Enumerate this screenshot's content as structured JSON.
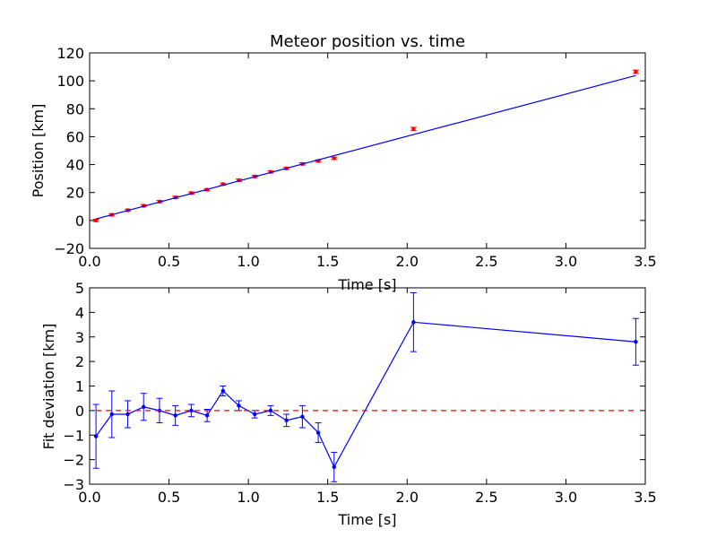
{
  "chart_data": [
    {
      "type": "scatter",
      "title": "Meteor position vs. time",
      "xlabel": "Time [s]",
      "ylabel": "Position [km]",
      "xlim": [
        0.0,
        3.5
      ],
      "ylim": [
        -20,
        120
      ],
      "xticks": [
        "0.0",
        "0.5",
        "1.0",
        "1.5",
        "2.0",
        "2.5",
        "3.0",
        "3.5"
      ],
      "yticks": [
        "−20",
        "0",
        "20",
        "40",
        "60",
        "80",
        "100",
        "120"
      ],
      "grid": false,
      "series": [
        {
          "kind": "points_with_errorbars",
          "color": "#ff0000",
          "x": [
            0.04,
            0.14,
            0.24,
            0.34,
            0.44,
            0.54,
            0.64,
            0.74,
            0.84,
            0.94,
            1.04,
            1.14,
            1.24,
            1.34,
            1.44,
            1.54,
            2.04,
            3.44
          ],
          "y": [
            0.0,
            4.0,
            7.3,
            10.5,
            13.5,
            16.5,
            19.6,
            22.0,
            26.0,
            28.8,
            31.5,
            34.8,
            37.3,
            40.5,
            42.6,
            44.5,
            65.5,
            106.5
          ],
          "yerr": [
            0.8,
            0.8,
            0.8,
            0.8,
            0.8,
            0.8,
            0.8,
            0.8,
            0.8,
            0.8,
            0.8,
            0.8,
            0.8,
            0.8,
            0.8,
            0.8,
            1.2,
            1.2
          ]
        },
        {
          "kind": "fit_line",
          "color": "#0000ff",
          "x": [
            0.04,
            3.44
          ],
          "y": [
            1.1,
            103.8
          ]
        }
      ]
    },
    {
      "type": "line",
      "xlabel": "Time [s]",
      "ylabel": "Fit deviation [km]",
      "xlim": [
        0.0,
        3.5
      ],
      "ylim": [
        -3,
        5
      ],
      "xticks": [
        "0.0",
        "0.5",
        "1.0",
        "1.5",
        "2.0",
        "2.5",
        "3.0",
        "3.5"
      ],
      "yticks": [
        "−3",
        "−2",
        "−1",
        "0",
        "1",
        "2",
        "3",
        "4",
        "5"
      ],
      "grid": false,
      "series": [
        {
          "kind": "line_with_errorbars",
          "color": "#0000ff",
          "x": [
            0.04,
            0.14,
            0.24,
            0.34,
            0.44,
            0.54,
            0.64,
            0.74,
            0.84,
            0.94,
            1.04,
            1.14,
            1.24,
            1.34,
            1.44,
            1.54,
            2.04,
            3.44
          ],
          "y": [
            -1.05,
            -0.15,
            -0.15,
            0.15,
            0.0,
            -0.2,
            0.0,
            -0.2,
            0.8,
            0.2,
            -0.15,
            0.0,
            -0.4,
            -0.25,
            -0.9,
            -2.3,
            3.6,
            2.8
          ],
          "yerr": [
            1.3,
            0.95,
            0.55,
            0.55,
            0.5,
            0.4,
            0.25,
            0.25,
            0.2,
            0.2,
            0.15,
            0.2,
            0.25,
            0.45,
            0.4,
            0.6,
            1.2,
            0.95
          ]
        },
        {
          "kind": "reference_line",
          "color": "#ff0000",
          "style": "dashed",
          "x": [
            0.04,
            3.44
          ],
          "y": [
            0,
            0
          ]
        }
      ]
    }
  ]
}
